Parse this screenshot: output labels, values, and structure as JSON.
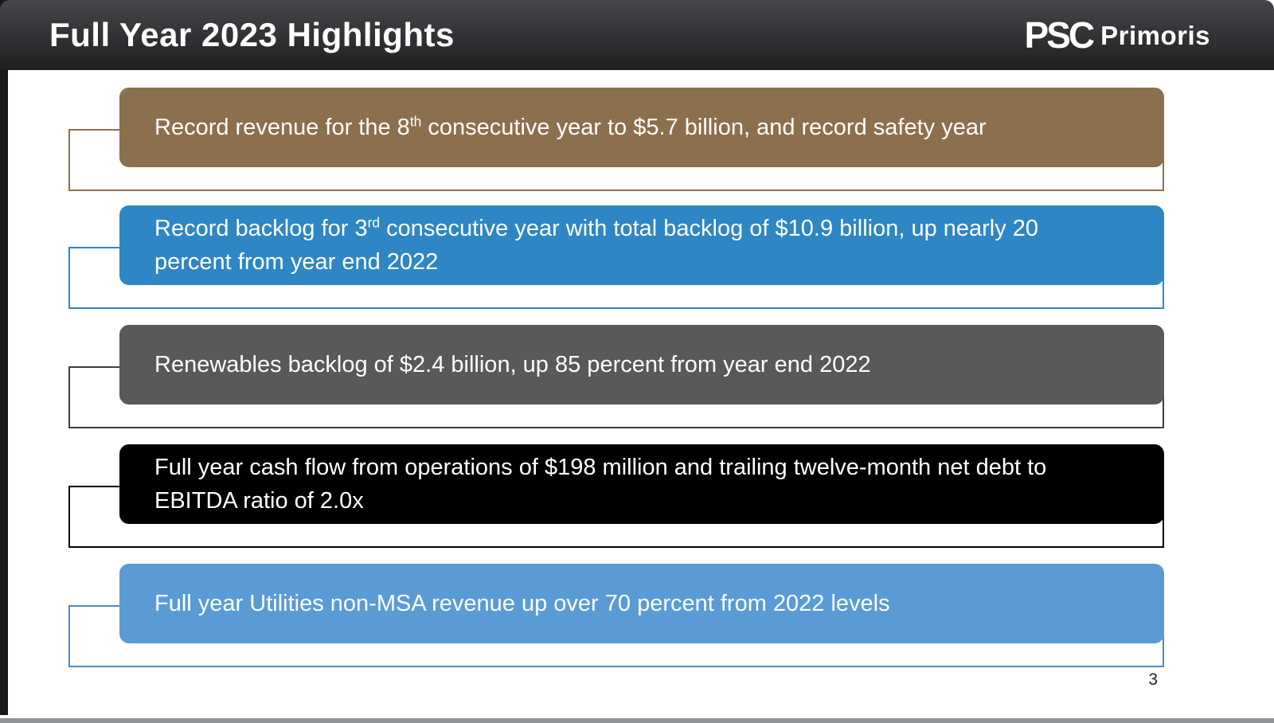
{
  "header": {
    "title": "Full Year 2023 Highlights",
    "logo": {
      "mark": "PSC",
      "name": "Primoris"
    }
  },
  "footer": {
    "page_number": "3"
  },
  "colors": {
    "header_bg_top": "#45474a",
    "header_bg_bottom": "#1d1f21",
    "slide_bg": "#ffffff",
    "text_on_boxes": "#ffffff"
  },
  "boxes": [
    {
      "pre": "Record revenue for the 8",
      "sup": "th",
      "post": " consecutive year to $5.7 billion, and record safety year",
      "bg": "#8C6F4D",
      "outline": "#8C6F4D"
    },
    {
      "pre": "Record backlog for 3",
      "sup": "rd",
      "post": " consecutive year with total backlog of $10.9 billion, up nearly 20 percent from year end 2022",
      "bg": "#2E86C4",
      "outline": "#2E86C4"
    },
    {
      "pre": "Renewables backlog of $2.4 billion, up 85 percent from year end 2022",
      "sup": "",
      "post": "",
      "bg": "#595959",
      "outline": "#3F3F3F"
    },
    {
      "pre": "Full year cash flow from operations of $198 million and trailing twelve-month net debt to EBITDA ratio of 2.0x",
      "sup": "",
      "post": "",
      "bg": "#000000",
      "outline": "#000000"
    },
    {
      "pre": "Full year Utilities non-MSA revenue up over 70 percent from 2022 levels",
      "sup": "",
      "post": "",
      "bg": "#5B9BD5",
      "outline": "#4A8AC9"
    }
  ]
}
